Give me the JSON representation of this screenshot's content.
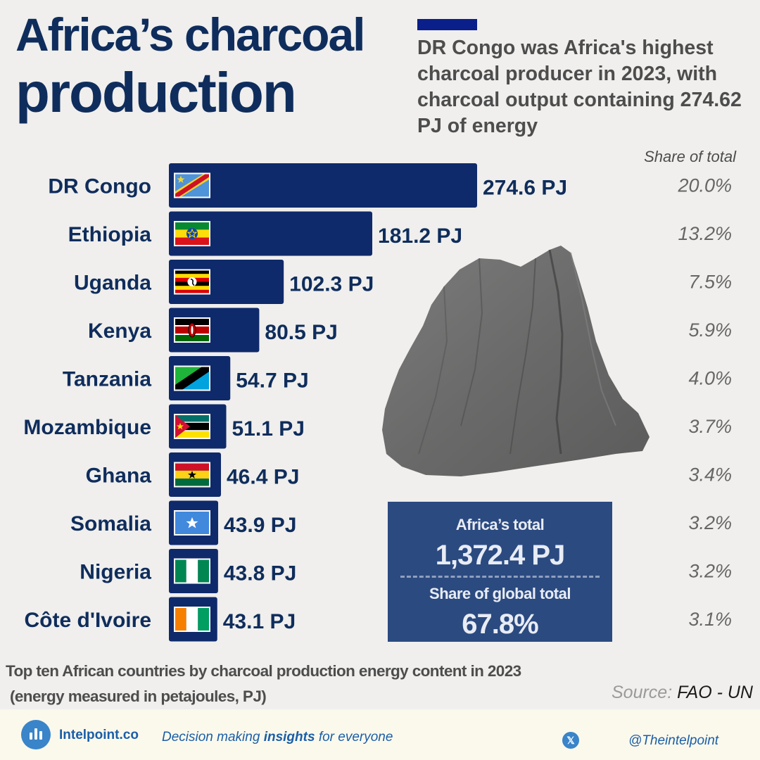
{
  "header": {
    "title_line1": "Africa’s charcoal",
    "title_line2": "production",
    "subtitle": "DR Congo was Africa's highest charcoal producer in 2023, with charcoal output containing 274.62 PJ of energy"
  },
  "share_header": "Share of total",
  "chart_data": {
    "type": "bar",
    "orientation": "horizontal",
    "categories": [
      "DR Congo",
      "Ethiopia",
      "Uganda",
      "Kenya",
      "Tanzania",
      "Mozambique",
      "Ghana",
      "Somalia",
      "Nigeria",
      "Côte d'Ivoire"
    ],
    "values": [
      274.6,
      181.2,
      102.3,
      80.5,
      54.7,
      51.1,
      46.4,
      43.9,
      43.8,
      43.1
    ],
    "value_labels": [
      "274.6 PJ",
      "181.2 PJ",
      "102.3 PJ",
      "80.5 PJ",
      "54.7 PJ",
      "51.1 PJ",
      "46.4 PJ",
      "43.9 PJ",
      "43.8 PJ",
      "43.1 PJ"
    ],
    "share_of_total": [
      "20.0%",
      "13.2%",
      "7.5%",
      "5.9%",
      "4.0%",
      "3.7%",
      "3.4%",
      "3.2%",
      "3.2%",
      "3.1%"
    ],
    "unit": "PJ",
    "title": "",
    "xlabel": "",
    "ylabel": "",
    "grid": false,
    "bar_color": "#0f2a6a"
  },
  "summary": {
    "total_label": "Africa’s total",
    "total_value": "1,372.4 PJ",
    "global_label": "Share of global total",
    "global_value": "67.8%"
  },
  "caption": {
    "line1": "Top ten African countries by charcoal production energy content in 2023",
    "line2": "(energy measured in petajoules, PJ)"
  },
  "source": {
    "label": "Source:",
    "value": "FAO - UN"
  },
  "footer": {
    "brand": "Intelpoint.co",
    "tagline_pre": "Decision making",
    "tagline_bold": "insights",
    "tagline_post": "for everyone",
    "handle": "@Theintelpoint"
  },
  "icons": {
    "logo": "bar-chart-logo-icon",
    "social": "x-logo-icon"
  },
  "colors": {
    "title": "#0f2d5c",
    "bar": "#0f2a6a",
    "summary_box": "#2b4a80",
    "accent": "#0b1f8a"
  }
}
